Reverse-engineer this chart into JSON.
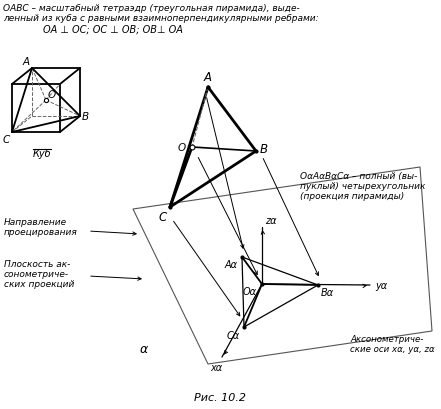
{
  "title_line1": "OABC – масштабный тетраэдр (треугольная пирамида), выде-",
  "title_line2": "ленный из куба с равными взаимноперпендикулярными ребрами:",
  "title_line3": "OA ⊥ OC; OC ⊥ OB; OB⊥ OA",
  "caption": "Рис. 10.2",
  "bg_color": "#ffffff",
  "line_color": "#000000",
  "dashed_color": "#666666",
  "cube_label": "Куб",
  "label_A": "A",
  "label_B": "B",
  "label_C": "C",
  "label_O": "O",
  "label_Aa": "Aα",
  "label_Ba": "Bα",
  "label_Ca": "Cα",
  "label_Oa": "Oα",
  "label_xa": "xα",
  "label_ya": "yα",
  "label_za": "zα",
  "label_alpha": "α",
  "ann_right1": "OαAαBαCα – полный (вы-",
  "ann_right2": "пуклый) четырехугольник",
  "ann_right3": "(проекция пирамиды)",
  "ann_dir1": "Направление",
  "ann_dir2": "проецирования",
  "ann_plane1": "Плоскость ак-",
  "ann_plane2": "сонометриче-",
  "ann_plane3": "ских проекций",
  "ann_axes1": "Аксонометриче-",
  "ann_axes2": "ские оси xα, yα, zα"
}
